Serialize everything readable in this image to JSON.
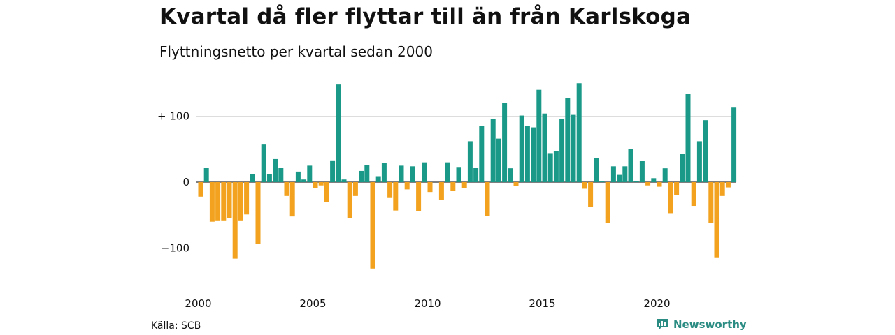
{
  "header": {
    "title": "Kvartal då fler flyttar till än från Karlskoga",
    "subtitle": "Flyttningsnetto per kvartal sedan 2000"
  },
  "footer": {
    "source": "Källa: SCB",
    "brand": "Newsworthy"
  },
  "colors": {
    "positive": "#1a9988",
    "negative": "#f2a21e",
    "brand": "#2a8c82",
    "grid": "#dddddd"
  },
  "chart_data": {
    "type": "bar",
    "title": "Kvartal då fler flyttar till än från Karlskoga",
    "subtitle": "Flyttningsnetto per kvartal sedan 2000",
    "xlabel": "",
    "ylabel": "",
    "x_start": "2000Q1",
    "x_ticks": [
      "2000",
      "2005",
      "2010",
      "2015",
      "2020"
    ],
    "y_ticks": [
      {
        "value": 100,
        "label": "+ 100"
      },
      {
        "value": 0,
        "label": "0"
      },
      {
        "value": -100,
        "label": "−100"
      }
    ],
    "ylim": [
      -140,
      155
    ],
    "grid": true,
    "legend": "none",
    "values": [
      -22,
      22,
      -60,
      -58,
      -58,
      -55,
      -116,
      -58,
      -49,
      12,
      -94,
      57,
      12,
      35,
      22,
      -21,
      -52,
      16,
      4,
      25,
      -9,
      -5,
      -30,
      33,
      148,
      4,
      -55,
      -21,
      17,
      26,
      -131,
      9,
      29,
      -23,
      -43,
      25,
      -11,
      24,
      -44,
      30,
      -15,
      0,
      -27,
      30,
      -13,
      23,
      -9,
      62,
      22,
      85,
      -51,
      96,
      66,
      120,
      21,
      -6,
      101,
      85,
      83,
      140,
      104,
      44,
      47,
      96,
      128,
      102,
      150,
      -10,
      -38,
      36,
      1,
      -62,
      24,
      11,
      24,
      50,
      2,
      32,
      -5,
      6,
      -7,
      21,
      -47,
      -20,
      43,
      134,
      -36,
      62,
      94,
      -62,
      -114,
      -21,
      -8,
      113
    ]
  }
}
